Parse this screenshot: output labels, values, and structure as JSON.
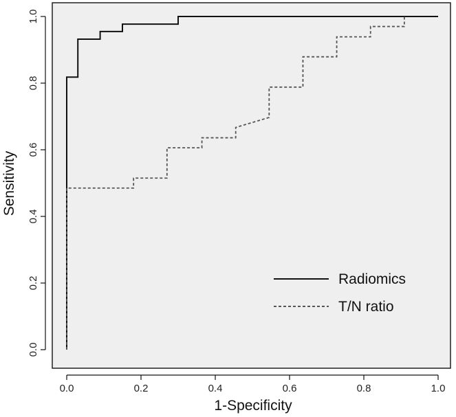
{
  "chart_data": {
    "type": "line",
    "xlabel": "1-Specificity",
    "ylabel": "Sensitivity",
    "xlim": [
      0,
      1
    ],
    "ylim": [
      0,
      1
    ],
    "xticks": [
      "0.0",
      "0.2",
      "0.4",
      "0.6",
      "0.8",
      "1.0"
    ],
    "yticks": [
      "0.0",
      "0.2",
      "0.4",
      "0.6",
      "0.8",
      "1.0"
    ],
    "grid": false,
    "legend_position": "bottom-right",
    "series": [
      {
        "name": "Radiomics",
        "style": "solid",
        "color": "#111111",
        "x": [
          0,
          0,
          0.03,
          0.03,
          0.09,
          0.09,
          0.15,
          0.15,
          0.3,
          0.3,
          1.0
        ],
        "y": [
          0,
          0.818,
          0.818,
          0.932,
          0.932,
          0.955,
          0.955,
          0.977,
          0.977,
          1.0,
          1.0
        ]
      },
      {
        "name": "T/N ratio",
        "style": "dashed",
        "color": "#555555",
        "x": [
          0,
          0,
          0.18,
          0.18,
          0.27,
          0.27,
          0.364,
          0.364,
          0.455,
          0.455,
          0.545,
          0.545,
          0.636,
          0.636,
          0.727,
          0.727,
          0.818,
          0.818,
          0.909,
          0.909
        ],
        "y": [
          0,
          0.485,
          0.485,
          0.515,
          0.515,
          0.606,
          0.606,
          0.636,
          0.636,
          0.667,
          0.697,
          0.788,
          0.788,
          0.879,
          0.879,
          0.939,
          0.939,
          0.97,
          0.97,
          1.0
        ]
      }
    ]
  }
}
